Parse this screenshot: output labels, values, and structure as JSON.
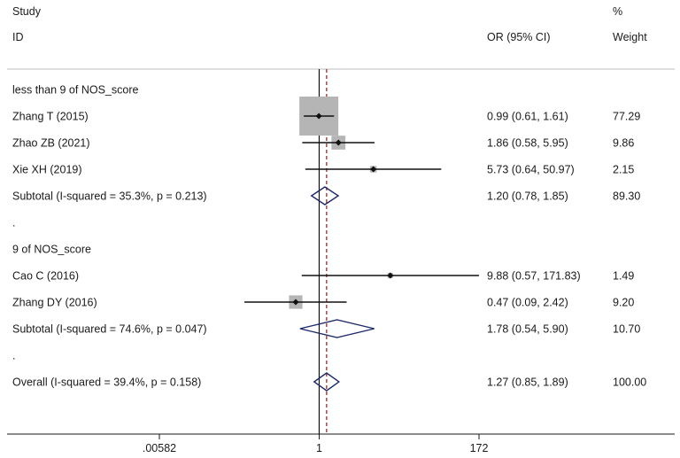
{
  "chart_data": {
    "type": "forest",
    "headers": {
      "study_top": "Study",
      "study_bottom": "ID",
      "effect": "OR (95% CI)",
      "weight_top": "%",
      "weight_bottom": "Weight"
    },
    "x_scale": "log",
    "x_ticks": [
      {
        "value": 0.00582,
        "label": ".00582"
      },
      {
        "value": 1,
        "label": "1"
      },
      {
        "value": 172,
        "label": "172"
      }
    ],
    "null_line": 1,
    "overall_line": 1.27,
    "colors": {
      "diamond": "#1f2a6b",
      "weight_box": "#b5b5b5",
      "overall_line": "#8b1a1a",
      "text": "#1a1a1a"
    },
    "rows": [
      {
        "kind": "group",
        "label": "less than 9 of NOS_score"
      },
      {
        "kind": "study",
        "label": "Zhang T (2015)",
        "or": 0.99,
        "lo": 0.61,
        "hi": 1.61,
        "ci_text": "0.99 (0.61, 1.61)",
        "weight": 77.29,
        "weight_text": "77.29"
      },
      {
        "kind": "study",
        "label": "Zhao ZB (2021)",
        "or": 1.86,
        "lo": 0.58,
        "hi": 5.95,
        "ci_text": "1.86 (0.58, 5.95)",
        "weight": 9.86,
        "weight_text": "9.86"
      },
      {
        "kind": "study",
        "label": "Xie XH (2019)",
        "or": 5.73,
        "lo": 0.64,
        "hi": 50.97,
        "ci_text": "5.73 (0.64, 50.97)",
        "weight": 2.15,
        "weight_text": "2.15"
      },
      {
        "kind": "subtotal",
        "label": "Subtotal  (I-squared = 35.3%, p = 0.213)",
        "or": 1.2,
        "lo": 0.78,
        "hi": 1.85,
        "ci_text": "1.20 (0.78, 1.85)",
        "weight": 89.3,
        "weight_text": "89.30"
      },
      {
        "kind": "spacer",
        "label": "."
      },
      {
        "kind": "group",
        "label": "9 of NOS_score"
      },
      {
        "kind": "study",
        "label": "Cao C (2016)",
        "or": 9.88,
        "lo": 0.57,
        "hi": 171.83,
        "ci_text": "9.88 (0.57, 171.83)",
        "weight": 1.49,
        "weight_text": "1.49"
      },
      {
        "kind": "study",
        "label": "Zhang DY (2016)",
        "or": 0.47,
        "lo": 0.09,
        "hi": 2.42,
        "ci_text": "0.47 (0.09, 2.42)",
        "weight": 9.2,
        "weight_text": "9.20"
      },
      {
        "kind": "subtotal",
        "label": "Subtotal  (I-squared = 74.6%, p = 0.047)",
        "or": 1.78,
        "lo": 0.54,
        "hi": 5.9,
        "ci_text": "1.78 (0.54, 5.90)",
        "weight": 10.7,
        "weight_text": "10.70"
      },
      {
        "kind": "spacer",
        "label": "."
      },
      {
        "kind": "overall",
        "label": "Overall  (I-squared = 39.4%, p = 0.158)",
        "or": 1.27,
        "lo": 0.85,
        "hi": 1.89,
        "ci_text": "1.27 (0.85, 1.89)",
        "weight": 100.0,
        "weight_text": "100.00"
      }
    ]
  }
}
